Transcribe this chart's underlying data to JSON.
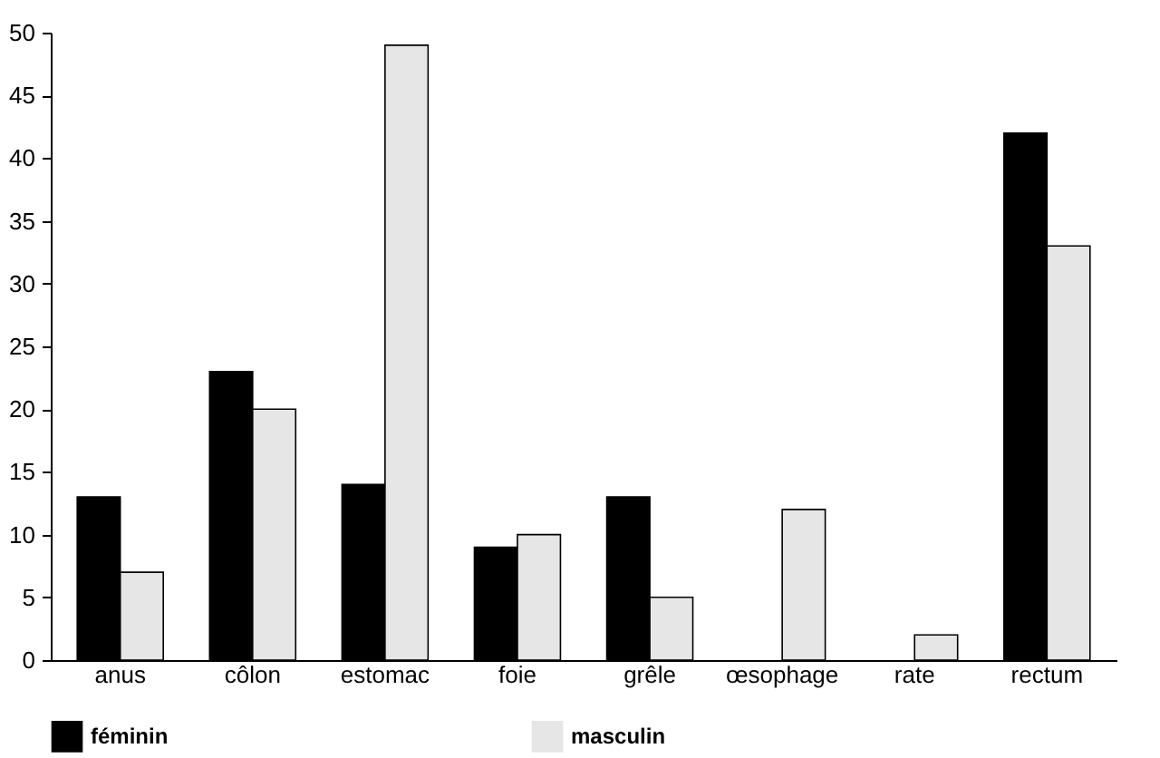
{
  "chart_data": {
    "type": "bar",
    "categories": [
      "anus",
      "côlon",
      "estomac",
      "foie",
      "grêle",
      "œsophage",
      "rate",
      "rectum"
    ],
    "series": [
      {
        "name": "féminin",
        "color": "#000000",
        "values": [
          13,
          23,
          14,
          9,
          13,
          null,
          null,
          42
        ]
      },
      {
        "name": "masculin",
        "color": "#e6e6e6",
        "values": [
          7,
          20,
          49,
          10,
          5,
          12,
          2,
          33
        ]
      }
    ],
    "ylim": [
      0,
      50
    ],
    "yticks": [
      0,
      5,
      10,
      15,
      20,
      25,
      30,
      35,
      40,
      45,
      50
    ],
    "grid": false,
    "legend": "bottom"
  }
}
